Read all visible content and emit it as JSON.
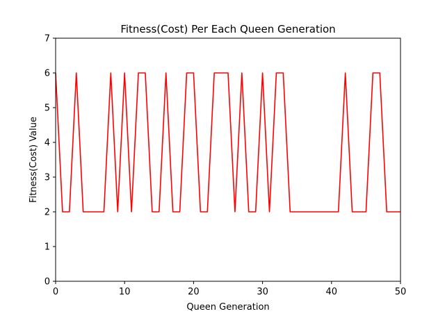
{
  "chart_data": {
    "type": "line",
    "title": "Fitness(Cost) Per Each Queen Generation",
    "xlabel": "Queen Generation",
    "ylabel": "Fitness(Cost) Value",
    "xlim": [
      0,
      50
    ],
    "ylim": [
      0,
      7
    ],
    "xticks": [
      0,
      10,
      20,
      30,
      40,
      50
    ],
    "yticks": [
      0,
      1,
      2,
      3,
      4,
      5,
      6,
      7
    ],
    "grid": false,
    "series": [
      {
        "color": "#ff0000",
        "x": [
          0,
          1,
          2,
          3,
          4,
          5,
          6,
          7,
          8,
          9,
          10,
          11,
          12,
          13,
          14,
          15,
          16,
          17,
          18,
          19,
          20,
          21,
          22,
          23,
          24,
          25,
          26,
          27,
          28,
          29,
          30,
          31,
          32,
          33,
          34,
          35,
          36,
          37,
          38,
          39,
          40,
          41,
          42,
          43,
          44,
          45,
          46,
          47,
          48,
          49,
          50
        ],
        "y": [
          6,
          2,
          2,
          6,
          2,
          2,
          2,
          2,
          6,
          2,
          6,
          2,
          6,
          6,
          2,
          2,
          6,
          2,
          2,
          6,
          6,
          2,
          2,
          6,
          6,
          6,
          2,
          6,
          2,
          2,
          6,
          2,
          6,
          6,
          2,
          2,
          2,
          2,
          2,
          2,
          2,
          2,
          6,
          2,
          2,
          2,
          6,
          6,
          2,
          2,
          2
        ]
      }
    ]
  }
}
